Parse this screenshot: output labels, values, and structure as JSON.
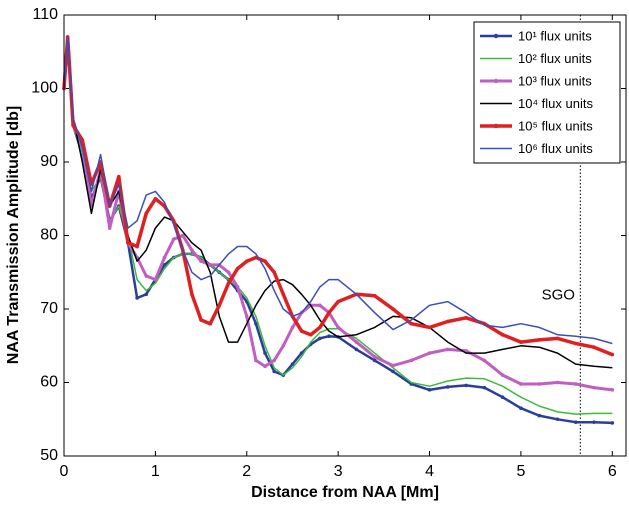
{
  "chart_data": {
    "type": "line",
    "xlabel": "Distance from NAA [Mm]",
    "ylabel": "NAA Transmission Amplitude [db]",
    "xlim": [
      0,
      6.15
    ],
    "ylim": [
      50,
      110
    ],
    "xticks": [
      0,
      1,
      2,
      3,
      4,
      5,
      6
    ],
    "yticks": [
      50,
      60,
      70,
      80,
      90,
      100,
      110
    ],
    "grid": false,
    "legend": "upper-right",
    "annotations": [
      {
        "text": "SGO",
        "x": 5.65
      }
    ],
    "x": [
      0,
      0.04,
      0.1,
      0.2,
      0.3,
      0.4,
      0.5,
      0.6,
      0.7,
      0.8,
      0.9,
      1.0,
      1.1,
      1.2,
      1.3,
      1.4,
      1.5,
      1.6,
      1.7,
      1.8,
      1.9,
      2.0,
      2.1,
      2.2,
      2.3,
      2.4,
      2.5,
      2.6,
      2.7,
      2.8,
      2.9,
      3.0,
      3.2,
      3.4,
      3.6,
      3.8,
      4.0,
      4.2,
      4.4,
      4.6,
      4.8,
      5.0,
      5.2,
      5.4,
      5.6,
      5.8,
      6.0
    ],
    "series": [
      {
        "name": "10¹ flux units",
        "color": "#2a3e9e",
        "width": 2.5,
        "marker": true,
        "values": [
          100,
          107,
          95,
          91,
          85,
          88,
          82,
          84,
          79,
          71.5,
          72,
          74,
          76,
          77,
          77.5,
          77.5,
          77,
          76,
          75,
          74,
          72.5,
          71,
          68,
          64,
          61.5,
          61,
          62.5,
          64,
          65.2,
          66,
          66.3,
          66.2,
          64.5,
          63,
          61.5,
          59.8,
          59,
          59.4,
          59.6,
          59.3,
          58,
          56.5,
          55.5,
          55,
          54.6,
          54.6,
          54.5
        ]
      },
      {
        "name": "10² flux units",
        "color": "#3dbb3d",
        "width": 1.5,
        "marker": false,
        "values": [
          100,
          107,
          95,
          91,
          86,
          88,
          82,
          84,
          80,
          74,
          72.5,
          73.5,
          75.5,
          77,
          77.5,
          77.5,
          77,
          76,
          75,
          74,
          73,
          71.5,
          69,
          65,
          62,
          61,
          62,
          63.5,
          65.5,
          66.8,
          67.3,
          67.3,
          66,
          64,
          62,
          60,
          59.5,
          60.2,
          60.6,
          60.5,
          59.5,
          58,
          56.8,
          56,
          55.7,
          55.8,
          55.8
        ]
      },
      {
        "name": "10³ flux units",
        "color": "#c25ec2",
        "width": 3,
        "marker": true,
        "values": [
          100,
          107,
          95,
          92,
          84,
          89,
          81,
          86,
          79,
          77,
          74.5,
          74,
          77,
          79.5,
          80,
          78,
          76.5,
          76,
          76,
          75,
          73,
          69,
          63,
          62.2,
          63,
          65,
          67.5,
          69.5,
          70.5,
          70.5,
          69.5,
          67.5,
          65.5,
          63.5,
          62.3,
          63,
          64,
          64.5,
          64.3,
          63,
          61,
          59.8,
          59.8,
          60,
          59.8,
          59.3,
          59
        ]
      },
      {
        "name": "10⁴ flux units",
        "color": "#000000",
        "width": 1.5,
        "marker": false,
        "values": [
          100,
          107,
          96,
          90,
          83,
          89,
          84,
          86,
          80,
          76.5,
          78,
          81,
          82.5,
          82,
          80.5,
          79,
          78,
          75,
          69,
          65.5,
          65.5,
          68,
          70.5,
          72.5,
          73.8,
          74,
          73.3,
          72,
          70.5,
          68.5,
          67,
          66.2,
          66.5,
          67.5,
          69,
          68.8,
          67.5,
          65.5,
          64,
          64,
          64.5,
          65,
          64.8,
          64,
          62.5,
          62.2,
          62
        ]
      },
      {
        "name": "10⁵ flux units",
        "color": "#e02020",
        "width": 3.5,
        "marker": true,
        "values": [
          100,
          107,
          95,
          93,
          87,
          90,
          84,
          88,
          79,
          78.5,
          83,
          85,
          84,
          82,
          78,
          72,
          68.5,
          68,
          70.5,
          73.5,
          75.5,
          76.5,
          77,
          76.5,
          75,
          72,
          69,
          67,
          66.5,
          67.5,
          69.5,
          71,
          72,
          71.8,
          70,
          68,
          67.5,
          68.3,
          68.8,
          68,
          66.5,
          65.5,
          65.8,
          66,
          65.3,
          64.8,
          63.8
        ]
      },
      {
        "name": "10⁶ flux units",
        "color": "#3a4fb8",
        "width": 1.5,
        "marker": false,
        "values": [
          100,
          107,
          96,
          92,
          86,
          91,
          84,
          87,
          81,
          82,
          85.5,
          86,
          84.5,
          81.5,
          78,
          75,
          74,
          74.5,
          76,
          77.5,
          78.5,
          78.5,
          77.5,
          75.5,
          72.5,
          70,
          69,
          69.5,
          71,
          73,
          74,
          74,
          72,
          69.5,
          67.2,
          68.5,
          70.5,
          71,
          69.5,
          67.8,
          67.5,
          68,
          67.5,
          66.5,
          66.3,
          66,
          65.3
        ]
      }
    ]
  }
}
